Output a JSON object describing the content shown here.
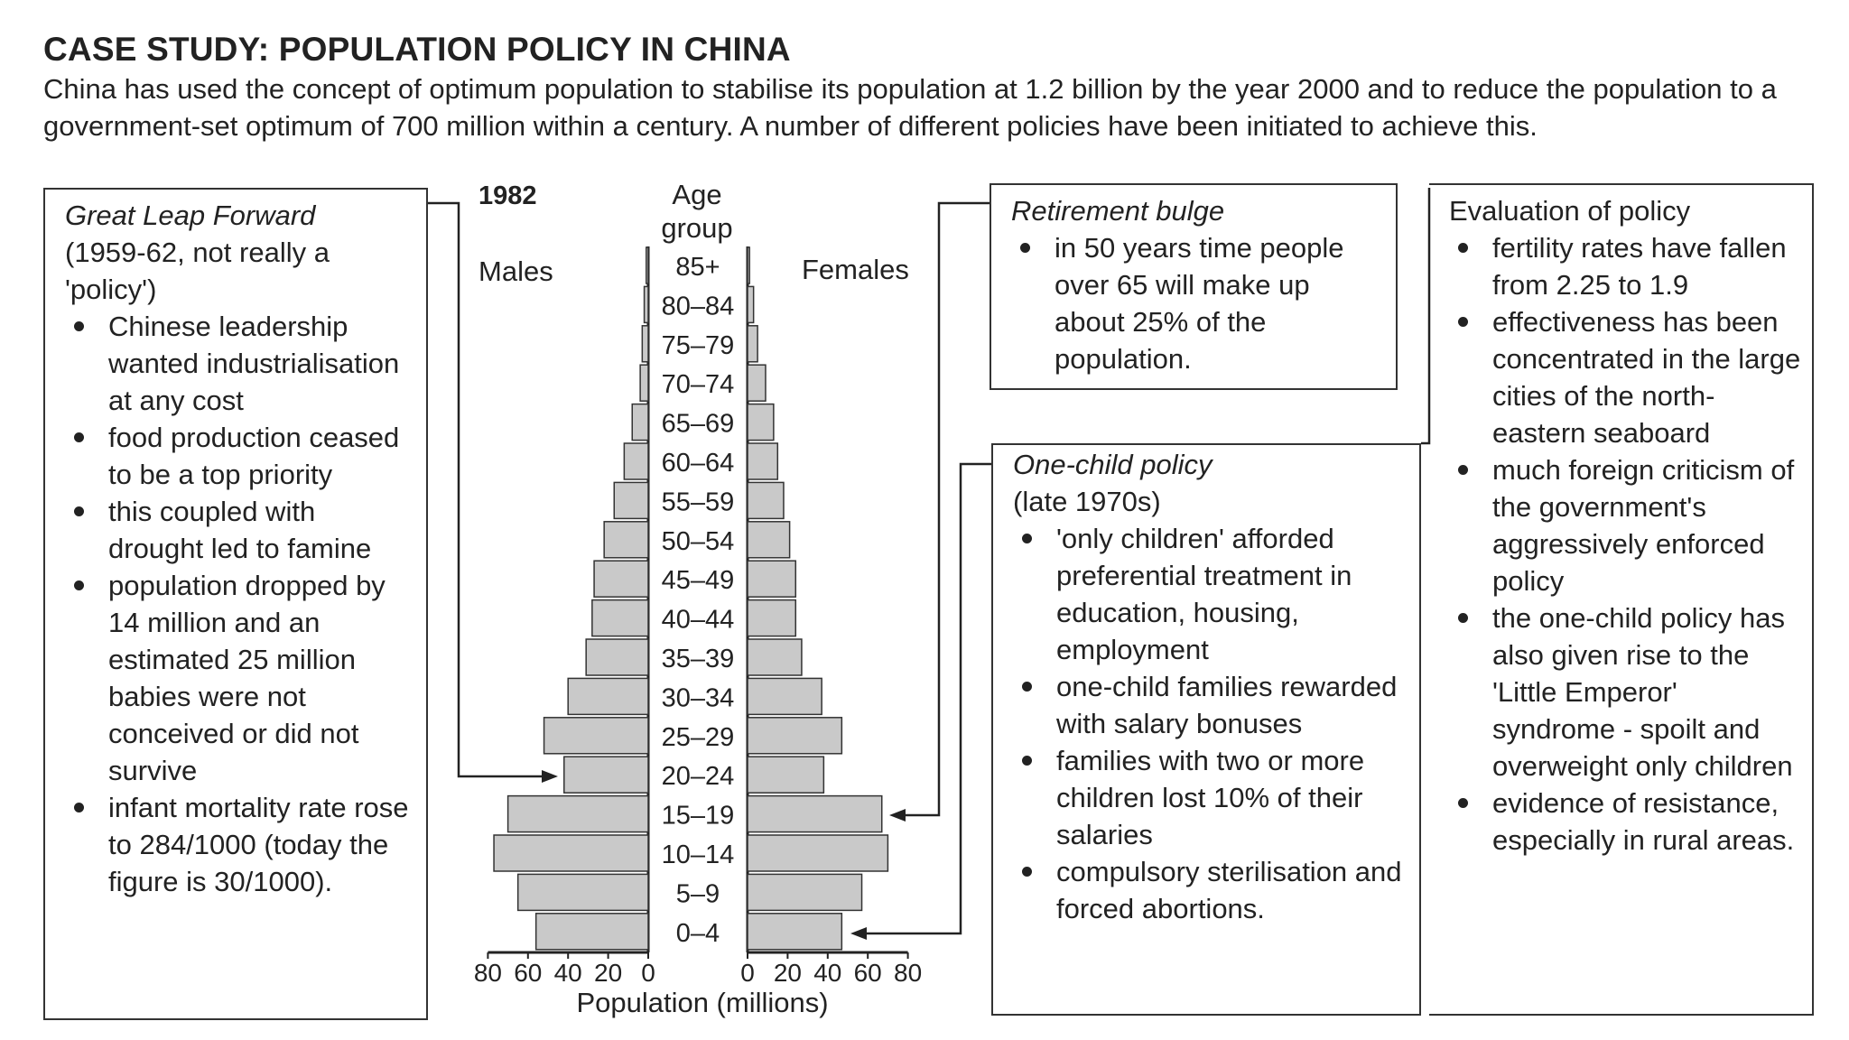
{
  "title": "CASE STUDY: POPULATION POLICY IN CHINA",
  "intro": "China has used the concept of optimum population to stabilise its population at 1.2 billion by the year 2000 and to reduce the population to a government-set optimum of 700 million within a century. A number of different policies have been initiated to achieve this.",
  "great_leap": {
    "heading": "Great Leap Forward",
    "subheading": "(1959-62, not really a 'policy')",
    "bullets": [
      "Chinese leadership wanted industrialisation at any cost",
      "food production ceased to be a top priority",
      "this coupled with drought led to famine",
      "population dropped by 14 million and an estimated 25 million babies were not conceived or did not survive",
      "infant mortality rate rose to 284/1000 (today the figure is 30/1000)."
    ]
  },
  "retirement": {
    "heading": "Retirement bulge",
    "bullets": [
      "in 50 years time people over 65 will make up about 25% of the population."
    ]
  },
  "one_child": {
    "heading": "One-child policy",
    "subheading": "(late 1970s)",
    "bullets": [
      "'only children' afforded preferential treatment in education, housing, employment",
      "one-child families rewarded with salary bonuses",
      "families with two or more children lost 10% of their salaries",
      "compulsory sterilisation and forced abortions."
    ]
  },
  "evaluation": {
    "heading": "Evaluation of policy",
    "bullets": [
      "fertility rates have fallen from 2.25 to 1.9",
      "effectiveness has been concentrated in the large cities of the north-eastern seaboard",
      "much foreign criticism of the government's aggressively enforced policy",
      "the one-child policy has also given rise to the 'Little Emperor' syndrome - spoilt and overweight only children",
      "evidence of resistance, especially in rural areas."
    ]
  },
  "chart_data": {
    "type": "bar",
    "title": "1982",
    "center_label_1": "Age",
    "center_label_2": "group",
    "left_label": "Males",
    "right_label": "Females",
    "xlabel": "Population (millions)",
    "xlim": [
      0,
      80
    ],
    "x_ticks_left": [
      "80",
      "60",
      "40",
      "20",
      "0"
    ],
    "x_ticks_right": [
      "0",
      "20",
      "40",
      "60",
      "80"
    ],
    "categories": [
      "85+",
      "80–84",
      "75–79",
      "70–74",
      "65–69",
      "60–64",
      "55–59",
      "50–54",
      "45–49",
      "40–44",
      "35–39",
      "30–34",
      "25–29",
      "20–24",
      "15–19",
      "10–14",
      "5–9",
      "0–4"
    ],
    "series": [
      {
        "name": "Males",
        "values": [
          1,
          2,
          3,
          4,
          8,
          12,
          17,
          22,
          27,
          28,
          31,
          40,
          52,
          42,
          70,
          77,
          65,
          56
        ]
      },
      {
        "name": "Females",
        "values": [
          1,
          3,
          5,
          9,
          13,
          15,
          18,
          21,
          24,
          24,
          27,
          37,
          47,
          38,
          67,
          70,
          57,
          47
        ]
      }
    ]
  }
}
